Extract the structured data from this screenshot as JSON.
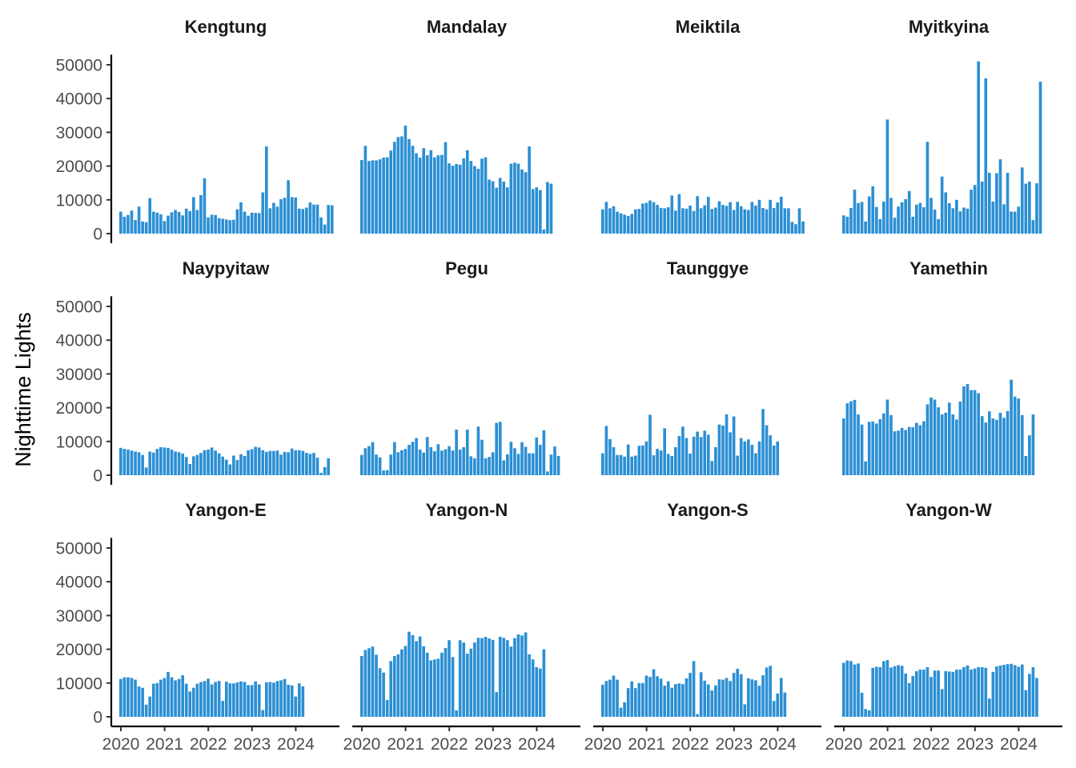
{
  "chart_data": {
    "type": "bar",
    "facet_layout": "4 columns x 3 rows, shared axes",
    "ylabel": "Nighttime Lights",
    "xlabel": "",
    "ylim": [
      0,
      53000
    ],
    "yticks": [
      0,
      10000,
      20000,
      30000,
      40000,
      50000
    ],
    "xticks": [
      2020,
      2021,
      2022,
      2023,
      2024
    ],
    "x_start": "2020-01",
    "x_frequency": "monthly",
    "n_months": 60,
    "bar_color": "#2b8fd3",
    "grid": false,
    "legend": "none",
    "panels": [
      {
        "name": "Kengtung",
        "values": [
          6500,
          5000,
          5500,
          6800,
          4000,
          8000,
          3600,
          3400,
          10500,
          6500,
          6200,
          5700,
          3700,
          5300,
          6300,
          7000,
          6400,
          5400,
          7400,
          6700,
          10800,
          7000,
          11400,
          16400,
          4800,
          5600,
          5500,
          4600,
          4400,
          4200,
          4000,
          4100,
          7200,
          9300,
          6500,
          5300,
          6200,
          6100,
          6100,
          12200,
          25800,
          7500,
          9100,
          8000,
          10200,
          10600,
          15800,
          10800,
          10700,
          7400,
          7300,
          7700,
          9200,
          8600,
          8600,
          4800,
          2700,
          8500,
          8400
        ]
      },
      {
        "name": "Mandalay",
        "values": [
          21800,
          26000,
          21500,
          21700,
          21700,
          22000,
          22500,
          22600,
          24600,
          27200,
          28600,
          28800,
          32000,
          28000,
          26000,
          23800,
          22500,
          25300,
          23200,
          24700,
          22600,
          23200,
          23300,
          27100,
          20800,
          20100,
          20600,
          20400,
          22300,
          24700,
          21500,
          20000,
          19200,
          22200,
          22600,
          16000,
          15500,
          13600,
          16500,
          15400,
          13700,
          20700,
          21000,
          20700,
          19000,
          18200,
          25800,
          13200,
          13700,
          12900,
          1200,
          15300,
          14800
        ]
      },
      {
        "name": "Meiktila",
        "values": [
          7200,
          9400,
          7500,
          8100,
          6500,
          6000,
          5600,
          5200,
          5800,
          7200,
          7300,
          8900,
          9100,
          9800,
          9300,
          8500,
          7600,
          7500,
          7800,
          11300,
          6800,
          11700,
          7500,
          7400,
          8300,
          6700,
          11100,
          7500,
          8400,
          10900,
          7300,
          7700,
          9600,
          8500,
          8200,
          9300,
          7000,
          9400,
          8100,
          7200,
          7000,
          9400,
          8300,
          10000,
          7600,
          7200,
          10000,
          7600,
          9200,
          10900,
          7500,
          7500,
          3500,
          2800,
          7500,
          3600
        ]
      },
      {
        "name": "Myitkyina",
        "values": [
          5400,
          5000,
          7600,
          13000,
          9000,
          9400,
          3600,
          11000,
          14000,
          7900,
          4300,
          9500,
          33800,
          10600,
          4700,
          8000,
          9300,
          10200,
          12600,
          5000,
          8600,
          9100,
          7800,
          27200,
          10600,
          7100,
          4300,
          16900,
          12200,
          9000,
          7500,
          10000,
          6600,
          7700,
          7400,
          13000,
          14400,
          51000,
          15400,
          46000,
          18000,
          9500,
          17900,
          22000,
          8700,
          18000,
          6500,
          6500,
          8000,
          19600,
          14800,
          15400,
          4000,
          14900,
          45000
        ]
      },
      {
        "name": "Naypyitaw",
        "values": [
          8100,
          7800,
          7600,
          7300,
          7000,
          6800,
          6000,
          2300,
          7000,
          6700,
          7800,
          8300,
          8200,
          8100,
          7600,
          7000,
          6800,
          6400,
          5400,
          3300,
          5600,
          6000,
          6600,
          7400,
          7600,
          8200,
          7300,
          6500,
          5500,
          4600,
          3200,
          5800,
          4500,
          6200,
          5700,
          7400,
          7700,
          8400,
          8200,
          7400,
          6900,
          7200,
          7200,
          7300,
          6100,
          6900,
          6800,
          7900,
          7400,
          7400,
          7200,
          6600,
          6300,
          6600,
          5200,
          700,
          2400,
          5000
        ]
      },
      {
        "name": "Pegu",
        "values": [
          6000,
          8000,
          8600,
          9800,
          6100,
          5300,
          1400,
          1500,
          6100,
          9800,
          6800,
          7400,
          7800,
          9000,
          9900,
          11000,
          7600,
          6700,
          11300,
          8300,
          7100,
          9200,
          7300,
          7700,
          8600,
          7300,
          13500,
          7600,
          8300,
          13500,
          5600,
          5000,
          14400,
          10500,
          5000,
          5400,
          6800,
          15500,
          15800,
          4400,
          6200,
          9900,
          8000,
          6300,
          9800,
          8400,
          6500,
          6500,
          11200,
          9000,
          13300,
          1100,
          6100,
          8500,
          5700
        ]
      },
      {
        "name": "Taunggye",
        "values": [
          6500,
          14600,
          10700,
          8300,
          6000,
          6000,
          5500,
          9100,
          5500,
          5800,
          8700,
          8800,
          10000,
          17900,
          5900,
          7800,
          7300,
          13900,
          6300,
          5700,
          8300,
          11600,
          14400,
          11000,
          6400,
          11400,
          12900,
          11300,
          13200,
          12000,
          4200,
          8300,
          15000,
          14700,
          18000,
          12700,
          17400,
          5800,
          11000,
          10000,
          10600,
          9000,
          6500,
          10000,
          19600,
          14800,
          11800,
          8800,
          10000
        ]
      },
      {
        "name": "Yamethin",
        "values": [
          16800,
          21300,
          21900,
          22300,
          18000,
          15000,
          4100,
          15800,
          15900,
          15300,
          16600,
          18300,
          22400,
          17800,
          13000,
          13200,
          14000,
          13400,
          14300,
          14200,
          15500,
          14800,
          16000,
          21000,
          23000,
          22400,
          20100,
          18000,
          18500,
          21500,
          18000,
          16500,
          21800,
          26300,
          27000,
          25200,
          25200,
          24300,
          17500,
          15600,
          18900,
          16800,
          16400,
          18500,
          17000,
          19000,
          28300,
          23300,
          22700,
          17800,
          5700,
          11800,
          18000
        ]
      },
      {
        "name": "Yangon-E",
        "values": [
          11200,
          11700,
          11700,
          11500,
          11000,
          9000,
          8600,
          3600,
          6000,
          9800,
          10000,
          11000,
          11500,
          13300,
          11700,
          10800,
          11200,
          12300,
          9800,
          7500,
          8600,
          9800,
          10300,
          10600,
          11300,
          9600,
          10300,
          10600,
          4700,
          10400,
          9900,
          9900,
          10200,
          10500,
          10300,
          9400,
          9400,
          10500,
          9600,
          2000,
          10200,
          10300,
          10100,
          10600,
          10800,
          11200,
          9500,
          9300,
          6000,
          9900,
          9000
        ]
      },
      {
        "name": "Yangon-N",
        "values": [
          18000,
          19800,
          20300,
          20800,
          18400,
          14400,
          13100,
          5000,
          16500,
          18000,
          18500,
          20000,
          21000,
          25200,
          24200,
          22400,
          23800,
          20900,
          19000,
          16700,
          17000,
          17200,
          19000,
          20400,
          22700,
          17700,
          1900,
          22700,
          22000,
          18700,
          20200,
          22000,
          23400,
          23300,
          23700,
          23200,
          22800,
          7300,
          23700,
          23400,
          22700,
          20800,
          23300,
          24400,
          24100,
          25000,
          18500,
          17000,
          14700,
          14300,
          20000
        ]
      },
      {
        "name": "Yangon-S",
        "values": [
          9500,
          10600,
          11000,
          12200,
          11000,
          2700,
          4300,
          8500,
          10500,
          8500,
          10000,
          10000,
          12200,
          11800,
          14100,
          12000,
          11300,
          9200,
          10500,
          8600,
          9700,
          9900,
          9700,
          11400,
          13000,
          16500,
          800,
          13200,
          10700,
          9600,
          7800,
          9300,
          11100,
          11000,
          11500,
          10600,
          13000,
          14200,
          12600,
          3700,
          11400,
          11100,
          10800,
          9200,
          12300,
          14600,
          15100,
          4700,
          6900,
          11500,
          7200
        ]
      },
      {
        "name": "Yangon-W",
        "values": [
          16000,
          16700,
          16500,
          15500,
          15800,
          7100,
          2300,
          1900,
          14500,
          14800,
          14700,
          16500,
          16800,
          14600,
          15000,
          15300,
          15100,
          12800,
          10000,
          12100,
          13500,
          14000,
          14000,
          14700,
          11800,
          13700,
          13700,
          8200,
          13500,
          13400,
          13300,
          14000,
          14000,
          14700,
          15200,
          14000,
          14300,
          14700,
          14700,
          14500,
          5400,
          13300,
          14900,
          15200,
          15400,
          15600,
          15700,
          15300,
          14800,
          15500,
          7900,
          12700,
          14700,
          11500
        ]
      }
    ]
  }
}
